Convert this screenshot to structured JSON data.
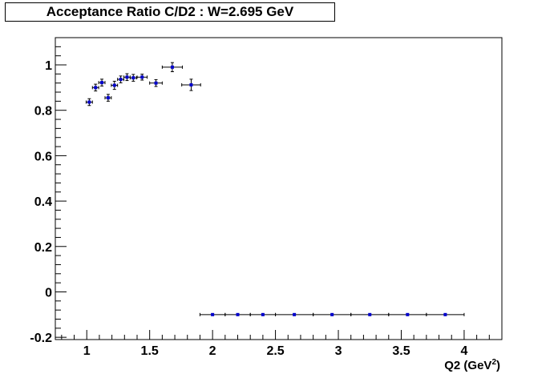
{
  "chart_data": {
    "type": "scatter",
    "title": "Acceptance Ratio C/D2 : W=2.695 GeV",
    "xlabel": "Q2 (GeV",
    "xlabel_sup": "2",
    "xlabel_end": ")",
    "ylabel": "",
    "xlim": [
      0.75,
      4.3
    ],
    "ylim": [
      -0.21,
      1.12
    ],
    "grid": false,
    "x_ticks": [
      {
        "value": 1,
        "label": "1"
      },
      {
        "value": 1.5,
        "label": "1.5"
      },
      {
        "value": 2,
        "label": "2"
      },
      {
        "value": 2.5,
        "label": "2.5"
      },
      {
        "value": 3,
        "label": "3"
      },
      {
        "value": 3.5,
        "label": "3.5"
      },
      {
        "value": 4,
        "label": "4"
      }
    ],
    "y_ticks": [
      {
        "value": -0.2,
        "label": "-0.2"
      },
      {
        "value": 0,
        "label": "0"
      },
      {
        "value": 0.2,
        "label": "0.2"
      },
      {
        "value": 0.4,
        "label": "0.4"
      },
      {
        "value": 0.6,
        "label": "0.6"
      },
      {
        "value": 0.8,
        "label": "0.8"
      },
      {
        "value": 1,
        "label": "1"
      }
    ],
    "marker_color": "#0000cc",
    "points": [
      {
        "x": 1.02,
        "y": 0.836,
        "xerr": 0.025,
        "yerr": 0.015
      },
      {
        "x": 1.07,
        "y": 0.9,
        "xerr": 0.025,
        "yerr": 0.015
      },
      {
        "x": 1.12,
        "y": 0.922,
        "xerr": 0.025,
        "yerr": 0.015
      },
      {
        "x": 1.17,
        "y": 0.855,
        "xerr": 0.025,
        "yerr": 0.015
      },
      {
        "x": 1.22,
        "y": 0.91,
        "xerr": 0.025,
        "yerr": 0.018
      },
      {
        "x": 1.27,
        "y": 0.936,
        "xerr": 0.025,
        "yerr": 0.015
      },
      {
        "x": 1.32,
        "y": 0.946,
        "xerr": 0.025,
        "yerr": 0.015
      },
      {
        "x": 1.37,
        "y": 0.943,
        "xerr": 0.025,
        "yerr": 0.015
      },
      {
        "x": 1.44,
        "y": 0.946,
        "xerr": 0.04,
        "yerr": 0.013
      },
      {
        "x": 1.55,
        "y": 0.92,
        "xerr": 0.05,
        "yerr": 0.015
      },
      {
        "x": 1.68,
        "y": 0.99,
        "xerr": 0.08,
        "yerr": 0.02
      },
      {
        "x": 1.83,
        "y": 0.912,
        "xerr": 0.075,
        "yerr": 0.025
      },
      {
        "x": 2.0,
        "y": -0.1,
        "xerr": 0.1,
        "yerr": 0
      },
      {
        "x": 2.2,
        "y": -0.1,
        "xerr": 0.1,
        "yerr": 0
      },
      {
        "x": 2.4,
        "y": -0.1,
        "xerr": 0.1,
        "yerr": 0
      },
      {
        "x": 2.65,
        "y": -0.1,
        "xerr": 0.15,
        "yerr": 0
      },
      {
        "x": 2.95,
        "y": -0.1,
        "xerr": 0.15,
        "yerr": 0
      },
      {
        "x": 3.25,
        "y": -0.1,
        "xerr": 0.15,
        "yerr": 0
      },
      {
        "x": 3.55,
        "y": -0.1,
        "xerr": 0.15,
        "yerr": 0
      },
      {
        "x": 3.85,
        "y": -0.1,
        "xerr": 0.15,
        "yerr": 0
      }
    ]
  }
}
